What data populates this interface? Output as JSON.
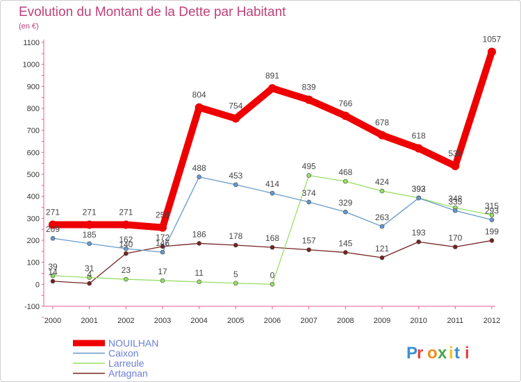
{
  "chart_data": {
    "type": "line",
    "title": "Evolution du Montant de la Dette par Habitant",
    "subtitle": "(en €)",
    "x": [
      "2000",
      "2001",
      "2002",
      "2003",
      "2004",
      "2005",
      "2006",
      "2007",
      "2008",
      "2009",
      "2010",
      "2011",
      "2012"
    ],
    "ylim": [
      -100,
      1100
    ],
    "yticks": [
      -100,
      0,
      100,
      200,
      300,
      400,
      500,
      600,
      700,
      800,
      900,
      1000,
      1100
    ],
    "grid": false,
    "legend_position": "bottom-left",
    "series": [
      {
        "name": "NOUILHAN",
        "color": "#ee0000",
        "values": [
          271,
          271,
          271,
          258,
          804,
          754,
          891,
          839,
          766,
          678,
          618,
          538,
          1057
        ]
      },
      {
        "name": "Caixon",
        "color": "#6699cc",
        "values": [
          209,
          185,
          162,
          146,
          488,
          453,
          414,
          374,
          329,
          263,
          392,
          335,
          293
        ]
      },
      {
        "name": "Larreule",
        "color": "#99dd66",
        "values": [
          39,
          31,
          23,
          17,
          11,
          5,
          0,
          495,
          468,
          424,
          393,
          348,
          315
        ]
      },
      {
        "name": "Artagnan",
        "color": "#772222",
        "values": [
          14,
          4,
          140,
          172,
          186,
          178,
          168,
          157,
          145,
          121,
          193,
          170,
          199
        ]
      }
    ]
  },
  "logo": {
    "text": "Proxiti"
  }
}
